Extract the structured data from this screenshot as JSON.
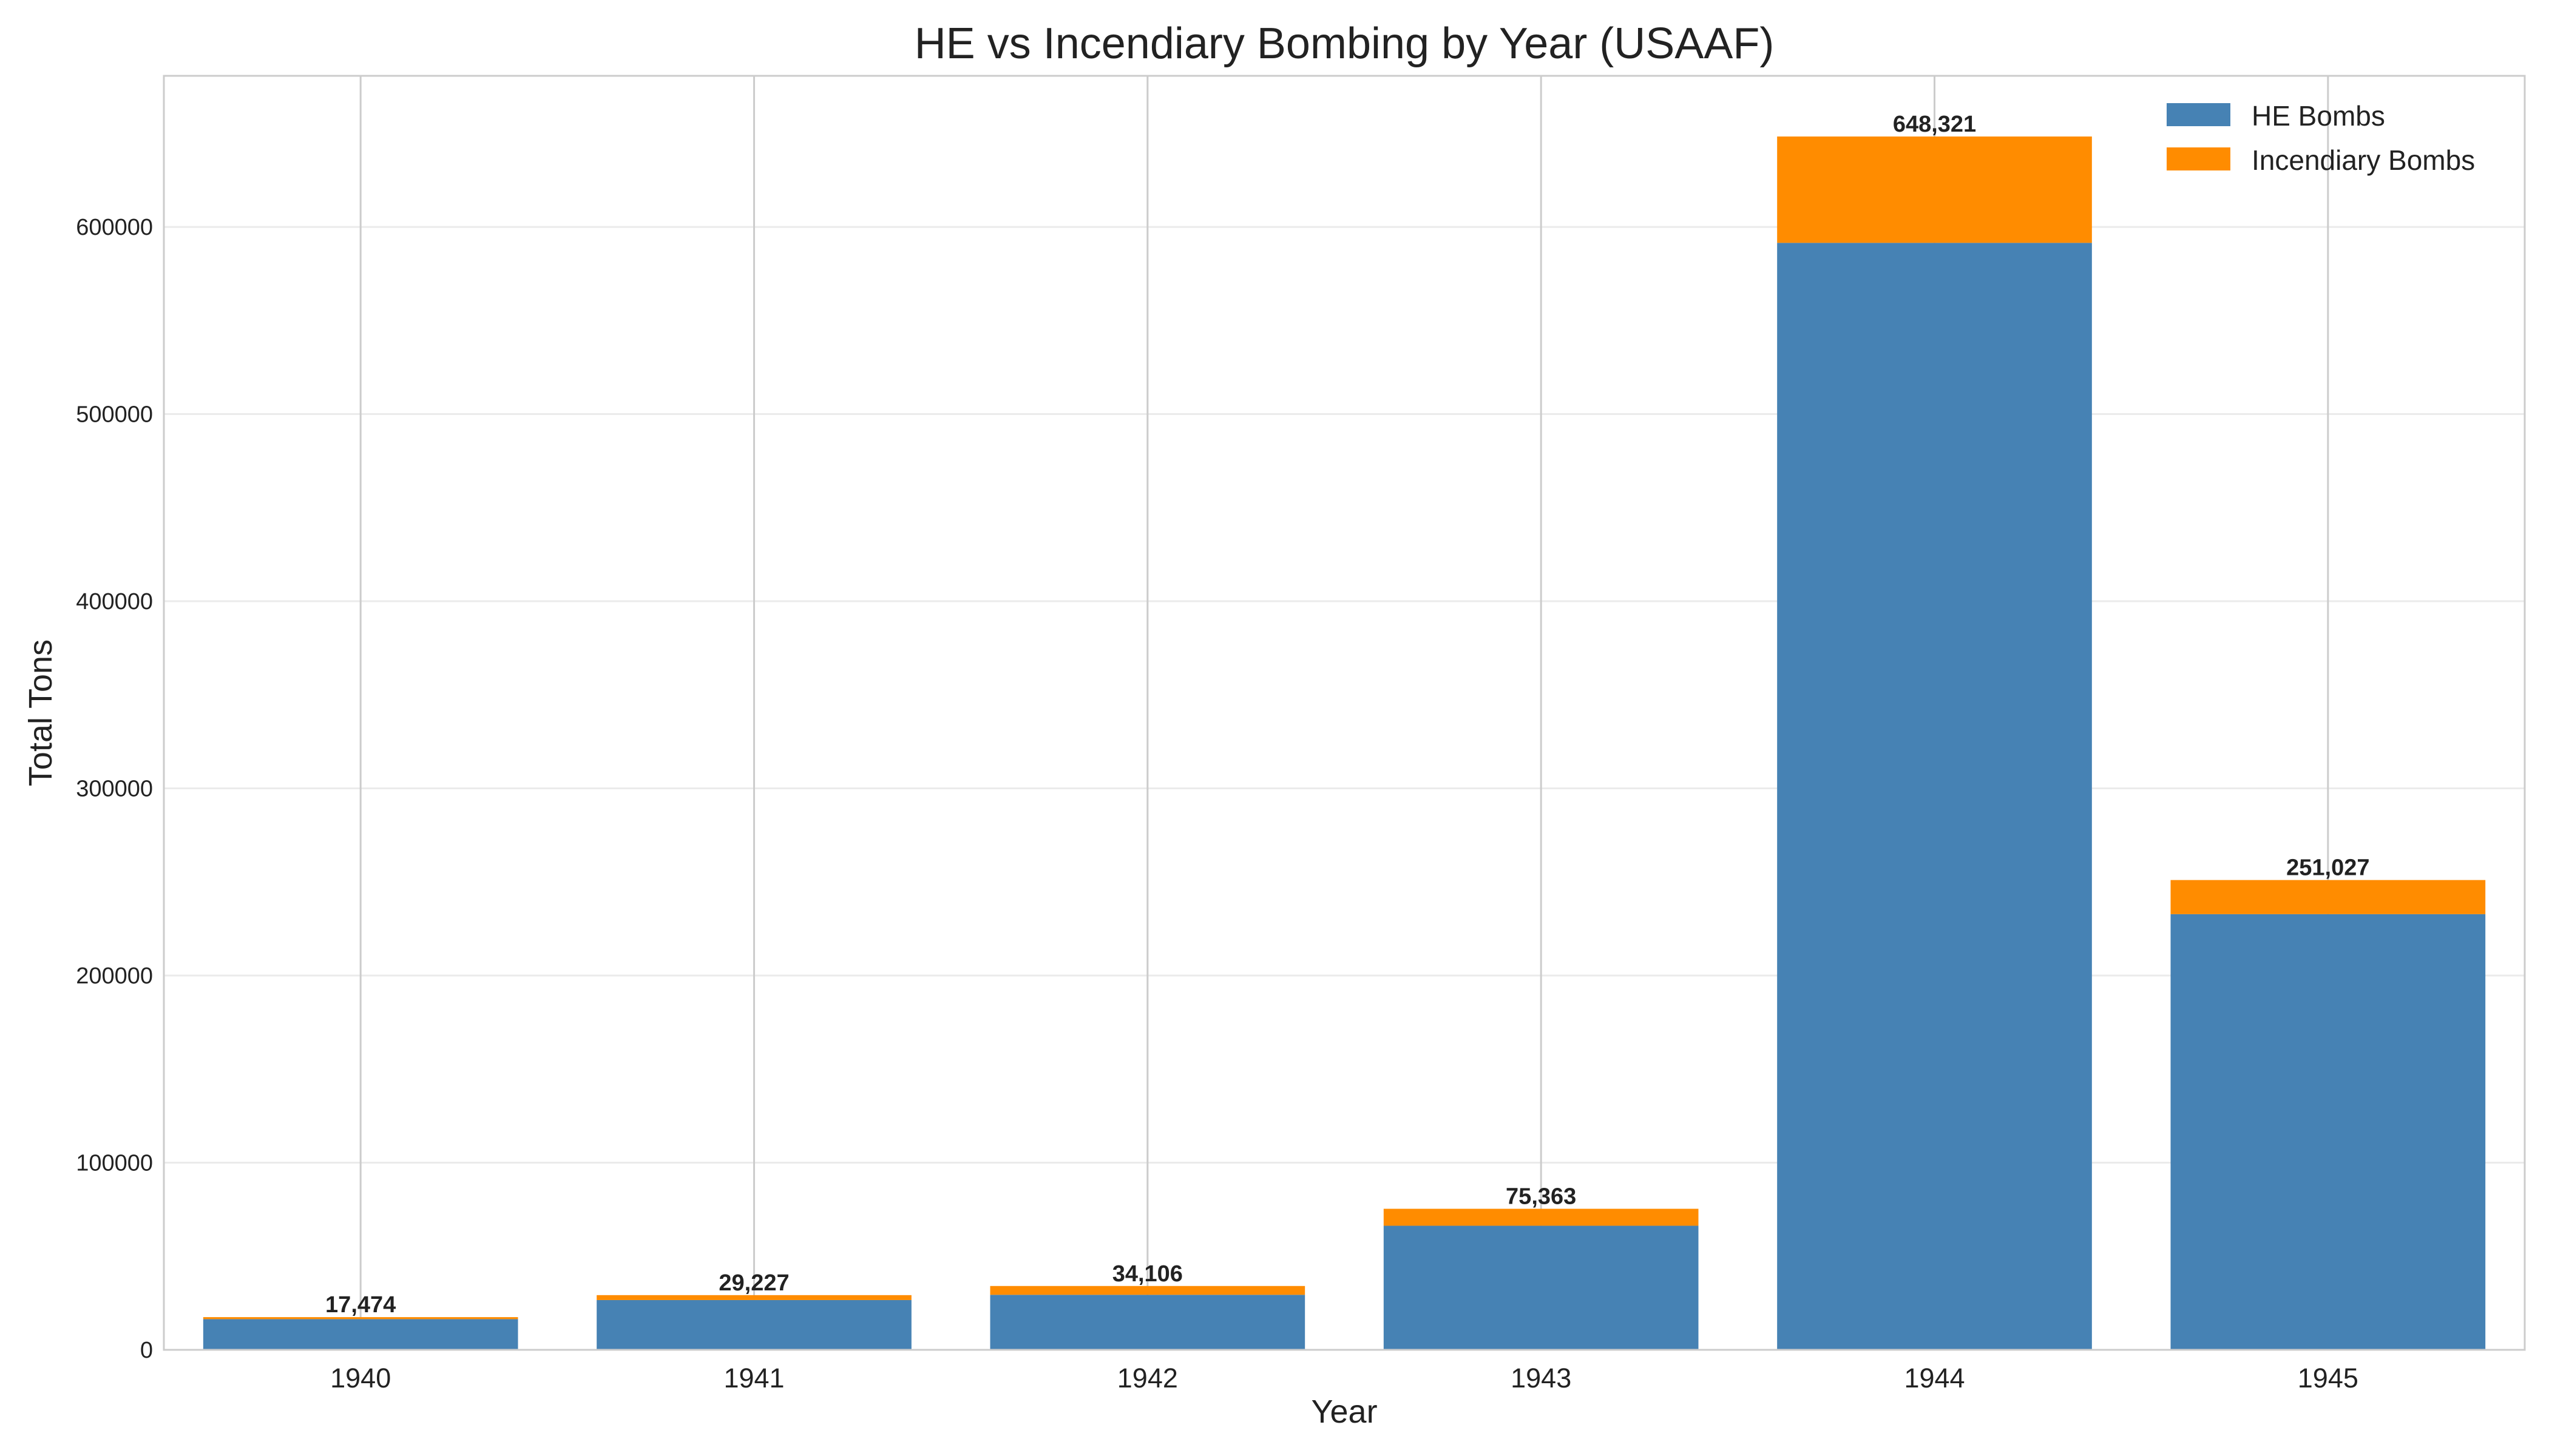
{
  "chart_data": {
    "type": "bar",
    "stacked": true,
    "title": "HE vs Incendiary Bombing by Year (USAAF)",
    "xlabel": "Year",
    "ylabel": "Total Tons",
    "categories": [
      "1940",
      "1941",
      "1942",
      "1943",
      "1944",
      "1945"
    ],
    "series": [
      {
        "name": "HE Bombs",
        "color": "#4682b4",
        "values": [
          16400,
          26600,
          29400,
          66300,
          591500,
          232800
        ]
      },
      {
        "name": "Incendiary Bombs",
        "color": "#ff8c00",
        "values": [
          1074,
          2627,
          4706,
          9063,
          56821,
          18227
        ]
      }
    ],
    "totals": [
      17474,
      29227,
      34106,
      75363,
      648321,
      251027
    ],
    "total_labels": [
      "17,474",
      "29,227",
      "34,106",
      "75,363",
      "648,321",
      "251,027"
    ],
    "yticks": [
      0,
      100000,
      200000,
      300000,
      400000,
      500000,
      600000
    ],
    "ytick_labels": [
      "0",
      "100000",
      "200000",
      "300000",
      "400000",
      "500000",
      "600000"
    ],
    "ylim": [
      0,
      680738
    ],
    "grid": true,
    "legend_position": "top-right"
  }
}
